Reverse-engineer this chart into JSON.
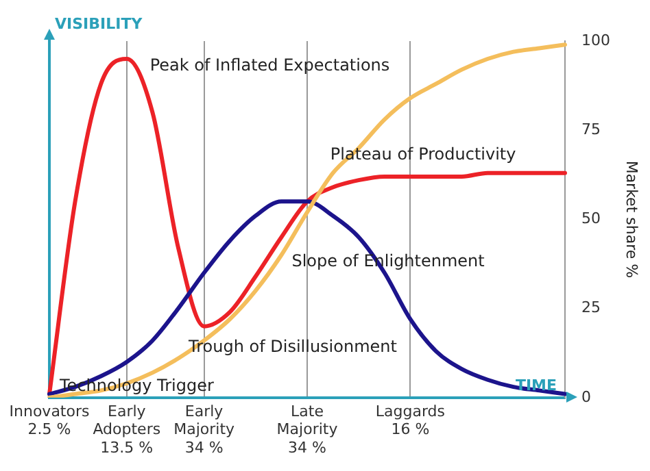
{
  "chart_data": {
    "type": "line",
    "ylabel": "VISIBILITY",
    "xlabel": "TIME",
    "y2label": "Market share %",
    "categories": [
      "Innovators\n2.5 %",
      null,
      null,
      "Early\nAdopters\n13.5 %",
      null,
      null,
      "Early\nMajority\n34 %",
      null,
      null,
      null,
      "Late\nMajority\n34 %",
      null,
      null,
      null,
      "Laggards\n16 %",
      null,
      null,
      null,
      null,
      null,
      null
    ],
    "y2lim": [
      0,
      100
    ],
    "y2ticks": [
      0,
      25,
      50,
      75,
      100
    ],
    "grid": "x",
    "legend": false,
    "marker": "none",
    "line_style": "solid",
    "series": [
      {
        "color": "#f4be5c",
        "axis": "y2",
        "values": [
          0,
          1,
          2,
          4,
          7,
          11,
          16,
          22,
          30,
          40,
          52,
          63,
          70,
          78,
          84,
          88,
          92,
          95,
          97,
          98,
          99
        ]
      },
      {
        "color": "#1c148c",
        "axis": "y2",
        "values": [
          1,
          3,
          6,
          10,
          16,
          25,
          35,
          44,
          51,
          55,
          55,
          51,
          45,
          35,
          22,
          13,
          8,
          5,
          3,
          2,
          1
        ]
      },
      {
        "color": "#ec2227",
        "axis": "y2",
        "values": [
          1,
          55,
          88,
          95,
          80,
          42,
          20,
          24,
          34,
          45,
          55,
          59,
          61,
          62,
          62,
          62,
          62,
          63,
          63,
          63,
          63
        ]
      }
    ],
    "annotations": [
      "Peak of Inflated Expectations",
      "Plateau of Productivity",
      "Slope of Enlightenment",
      "Trough of Disillusionment",
      "Technology Trigger"
    ]
  }
}
